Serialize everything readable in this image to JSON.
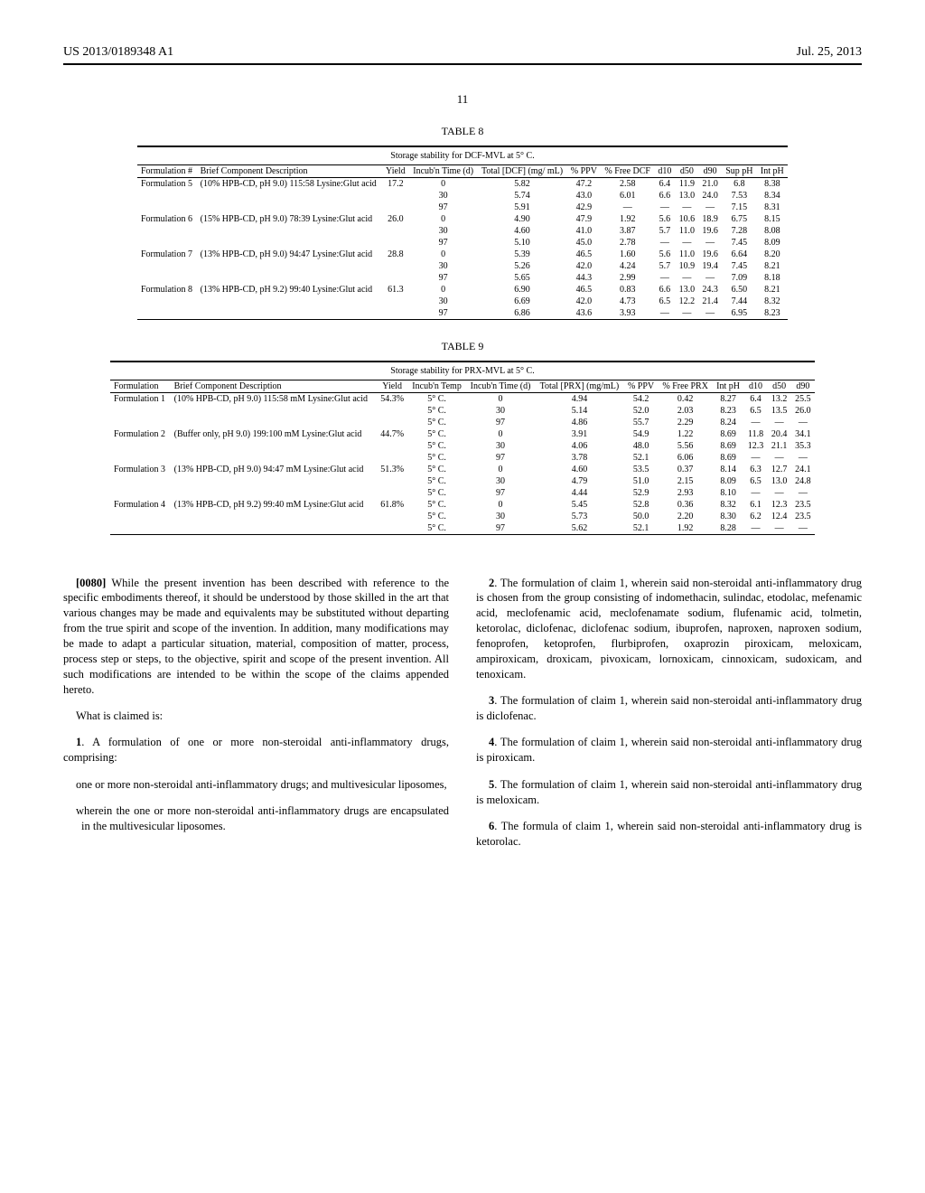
{
  "header": {
    "left": "US 2013/0189348 A1",
    "right": "Jul. 25, 2013",
    "page_number": "11"
  },
  "table8": {
    "label": "TABLE 8",
    "caption": "Storage stability for DCF-MVL at 5° C.",
    "columns": [
      "Formulation #",
      "Brief Component Description",
      "Yield",
      "Incub'n Time (d)",
      "Total [DCF] (mg/ mL)",
      "% PPV",
      "% Free DCF",
      "d10",
      "d50",
      "d90",
      "Sup pH",
      "Int pH"
    ],
    "formulations": [
      {
        "name": "Formulation 5",
        "desc": "(10% HPB-CD, pH 9.0) 115:58 Lysine:Glut acid",
        "yield": "17.2",
        "rows": [
          {
            "time": "0",
            "dcf": "5.82",
            "ppv": "47.2",
            "free": "2.58",
            "d10": "6.4",
            "d50": "11.9",
            "d90": "21.0",
            "sup": "6.8",
            "int": "8.38"
          },
          {
            "time": "30",
            "dcf": "5.74",
            "ppv": "43.0",
            "free": "6.01",
            "d10": "6.6",
            "d50": "13.0",
            "d90": "24.0",
            "sup": "7.53",
            "int": "8.34"
          },
          {
            "time": "97",
            "dcf": "5.91",
            "ppv": "42.9",
            "free": "—",
            "d10": "—",
            "d50": "—",
            "d90": "—",
            "sup": "7.15",
            "int": "8.31"
          }
        ]
      },
      {
        "name": "Formulation 6",
        "desc": "(15% HPB-CD, pH 9.0) 78:39 Lysine:Glut acid",
        "yield": "26.0",
        "rows": [
          {
            "time": "0",
            "dcf": "4.90",
            "ppv": "47.9",
            "free": "1.92",
            "d10": "5.6",
            "d50": "10.6",
            "d90": "18.9",
            "sup": "6.75",
            "int": "8.15"
          },
          {
            "time": "30",
            "dcf": "4.60",
            "ppv": "41.0",
            "free": "3.87",
            "d10": "5.7",
            "d50": "11.0",
            "d90": "19.6",
            "sup": "7.28",
            "int": "8.08"
          },
          {
            "time": "97",
            "dcf": "5.10",
            "ppv": "45.0",
            "free": "2.78",
            "d10": "—",
            "d50": "—",
            "d90": "—",
            "sup": "7.45",
            "int": "8.09"
          }
        ]
      },
      {
        "name": "Formulation 7",
        "desc": "(13% HPB-CD, pH 9.0) 94:47 Lysine:Glut acid",
        "yield": "28.8",
        "rows": [
          {
            "time": "0",
            "dcf": "5.39",
            "ppv": "46.5",
            "free": "1.60",
            "d10": "5.6",
            "d50": "11.0",
            "d90": "19.6",
            "sup": "6.64",
            "int": "8.20"
          },
          {
            "time": "30",
            "dcf": "5.26",
            "ppv": "42.0",
            "free": "4.24",
            "d10": "5.7",
            "d50": "10.9",
            "d90": "19.4",
            "sup": "7.45",
            "int": "8.21"
          },
          {
            "time": "97",
            "dcf": "5.65",
            "ppv": "44.3",
            "free": "2.99",
            "d10": "—",
            "d50": "—",
            "d90": "—",
            "sup": "7.09",
            "int": "8.18"
          }
        ]
      },
      {
        "name": "Formulation 8",
        "desc": "(13% HPB-CD, pH 9.2) 99:40 Lysine:Glut acid",
        "yield": "61.3",
        "rows": [
          {
            "time": "0",
            "dcf": "6.90",
            "ppv": "46.5",
            "free": "0.83",
            "d10": "6.6",
            "d50": "13.0",
            "d90": "24.3",
            "sup": "6.50",
            "int": "8.21"
          },
          {
            "time": "30",
            "dcf": "6.69",
            "ppv": "42.0",
            "free": "4.73",
            "d10": "6.5",
            "d50": "12.2",
            "d90": "21.4",
            "sup": "7.44",
            "int": "8.32"
          },
          {
            "time": "97",
            "dcf": "6.86",
            "ppv": "43.6",
            "free": "3.93",
            "d10": "—",
            "d50": "—",
            "d90": "—",
            "sup": "6.95",
            "int": "8.23"
          }
        ]
      }
    ]
  },
  "table9": {
    "label": "TABLE 9",
    "caption": "Storage stability for PRX-MVL at 5° C.",
    "columns": [
      "Formulation",
      "Brief Component Description",
      "Yield",
      "Incub'n Temp",
      "Incub'n Time (d)",
      "Total [PRX] (mg/mL)",
      "% PPV",
      "% Free PRX",
      "Int pH",
      "d10",
      "d50",
      "d90"
    ],
    "formulations": [
      {
        "name": "Formulation 1",
        "desc": "(10% HPB-CD, pH 9.0) 115:58 mM Lysine:Glut acid",
        "yield": "54.3%",
        "rows": [
          {
            "temp": "5° C.",
            "time": "0",
            "prx": "4.94",
            "ppv": "54.2",
            "free": "0.42",
            "int": "8.27",
            "d10": "6.4",
            "d50": "13.2",
            "d90": "25.5"
          },
          {
            "temp": "5° C.",
            "time": "30",
            "prx": "5.14",
            "ppv": "52.0",
            "free": "2.03",
            "int": "8.23",
            "d10": "6.5",
            "d50": "13.5",
            "d90": "26.0"
          },
          {
            "temp": "5° C.",
            "time": "97",
            "prx": "4.86",
            "ppv": "55.7",
            "free": "2.29",
            "int": "8.24",
            "d10": "—",
            "d50": "—",
            "d90": "—"
          }
        ]
      },
      {
        "name": "Formulation 2",
        "desc": "(Buffer only, pH 9.0) 199:100 mM Lysine:Glut acid",
        "yield": "44.7%",
        "rows": [
          {
            "temp": "5° C.",
            "time": "0",
            "prx": "3.91",
            "ppv": "54.9",
            "free": "1.22",
            "int": "8.69",
            "d10": "11.8",
            "d50": "20.4",
            "d90": "34.1"
          },
          {
            "temp": "5° C.",
            "time": "30",
            "prx": "4.06",
            "ppv": "48.0",
            "free": "5.56",
            "int": "8.69",
            "d10": "12.3",
            "d50": "21.1",
            "d90": "35.3"
          },
          {
            "temp": "5° C.",
            "time": "97",
            "prx": "3.78",
            "ppv": "52.1",
            "free": "6.06",
            "int": "8.69",
            "d10": "—",
            "d50": "—",
            "d90": "—"
          }
        ]
      },
      {
        "name": "Formulation 3",
        "desc": "(13% HPB-CD, pH 9.0) 94:47 mM Lysine:Glut acid",
        "yield": "51.3%",
        "rows": [
          {
            "temp": "5° C.",
            "time": "0",
            "prx": "4.60",
            "ppv": "53.5",
            "free": "0.37",
            "int": "8.14",
            "d10": "6.3",
            "d50": "12.7",
            "d90": "24.1"
          },
          {
            "temp": "5° C.",
            "time": "30",
            "prx": "4.79",
            "ppv": "51.0",
            "free": "2.15",
            "int": "8.09",
            "d10": "6.5",
            "d50": "13.0",
            "d90": "24.8"
          },
          {
            "temp": "5° C.",
            "time": "97",
            "prx": "4.44",
            "ppv": "52.9",
            "free": "2.93",
            "int": "8.10",
            "d10": "—",
            "d50": "—",
            "d90": "—"
          }
        ]
      },
      {
        "name": "Formulation 4",
        "desc": "(13% HPB-CD, pH 9.2) 99:40 mM Lysine:Glut acid",
        "yield": "61.8%",
        "rows": [
          {
            "temp": "5° C.",
            "time": "0",
            "prx": "5.45",
            "ppv": "52.8",
            "free": "0.36",
            "int": "8.32",
            "d10": "6.1",
            "d50": "12.3",
            "d90": "23.5"
          },
          {
            "temp": "5° C.",
            "time": "30",
            "prx": "5.73",
            "ppv": "50.0",
            "free": "2.20",
            "int": "8.30",
            "d10": "6.2",
            "d50": "12.4",
            "d90": "23.5"
          },
          {
            "temp": "5° C.",
            "time": "97",
            "prx": "5.62",
            "ppv": "52.1",
            "free": "1.92",
            "int": "8.28",
            "d10": "—",
            "d50": "—",
            "d90": "—"
          }
        ]
      }
    ]
  },
  "body": {
    "para_0080_num": "[0080]",
    "para_0080": "While the present invention has been described with reference to the specific embodiments thereof, it should be understood by those skilled in the art that various changes may be made and equivalents may be substituted without departing from the true spirit and scope of the invention. In addition, many modifications may be made to adapt a particular situation, material, composition of matter, process, process step or steps, to the objective, spirit and scope of the present invention. All such modifications are intended to be within the scope of the claims appended hereto.",
    "claimed_intro": "What is claimed is:",
    "claim1_num": "1",
    "claim1_lead": ". A formulation of one or more non-steroidal anti-inflammatory drugs, comprising:",
    "claim1_sub1": "one or more non-steroidal anti-inflammatory drugs; and multivesicular liposomes,",
    "claim1_sub2": "wherein the one or more non-steroidal anti-inflammatory drugs are encapsulated in the multivesicular liposomes.",
    "claim2_num": "2",
    "claim2": ". The formulation of claim 1, wherein said non-steroidal anti-inflammatory drug is chosen from the group consisting of indomethacin, sulindac, etodolac, mefenamic acid, meclofenamic acid, meclofenamate sodium, flufenamic acid, tolmetin, ketorolac, diclofenac, diclofenac sodium, ibuprofen, naproxen, naproxen sodium, fenoprofen, ketoprofen, flurbiprofen, oxaprozin piroxicam, meloxicam, ampiroxicam, droxicam, pivoxicam, lornoxicam, cinnoxicam, sudoxicam, and tenoxicam.",
    "claim3_num": "3",
    "claim3": ". The formulation of claim 1, wherein said non-steroidal anti-inflammatory drug is diclofenac.",
    "claim4_num": "4",
    "claim4": ". The formulation of claim 1, wherein said non-steroidal anti-inflammatory drug is piroxicam.",
    "claim5_num": "5",
    "claim5": ". The formulation of claim 1, wherein said non-steroidal anti-inflammatory drug is meloxicam.",
    "claim6_num": "6",
    "claim6": ". The formula of claim 1, wherein said non-steroidal anti-inflammatory drug is ketorolac."
  }
}
